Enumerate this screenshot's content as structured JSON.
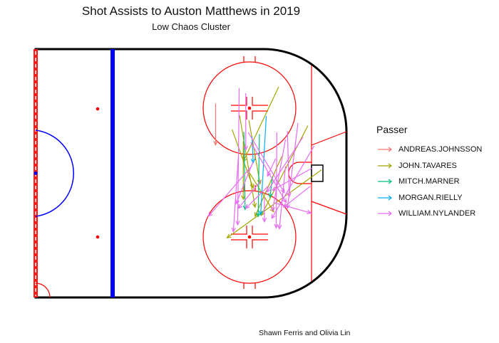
{
  "title": "Shot Assists to Auston Matthews in 2019",
  "subtitle": "Low Chaos Cluster",
  "caption": "Shawn Ferris and Olivia Lin",
  "legend": {
    "title": "Passer",
    "items": [
      {
        "name": "ANDREAS.JOHNSSON",
        "color": "#F8766D"
      },
      {
        "name": "JOHN.TAVARES",
        "color": "#A3A500"
      },
      {
        "name": "MITCH.MARNER",
        "color": "#00BF7D"
      },
      {
        "name": "MORGAN.RIELLY",
        "color": "#00B0F6"
      },
      {
        "name": "WILLIAM.NYLANDER",
        "color": "#E76BF3"
      }
    ]
  },
  "chart_data": {
    "type": "arrows",
    "title": "Shot Assists to Auston Matthews in 2019",
    "subtitle": "Low Chaos Cluster",
    "xlabel": "",
    "ylabel": "",
    "xlim": [
      0,
      100
    ],
    "ylim": [
      -42.5,
      42.5
    ],
    "grid": false,
    "legend_position": "right",
    "series": [
      {
        "name": "ANDREAS.JOHNSSON",
        "color": "#F8766D",
        "arrows": [
          [
            57.9,
            23.9,
            57.9,
            9.7
          ]
        ]
      },
      {
        "name": "JOHN.TAVARES",
        "color": "#A3A500",
        "arrows": [
          [
            78.2,
            29.6,
            66.8,
            4.0
          ],
          [
            66.8,
            10.9,
            66.8,
            -8.9
          ],
          [
            65.6,
            19.9,
            70.6,
            -11.6
          ],
          [
            68.6,
            18.2,
            72.2,
            -3.6
          ],
          [
            79.2,
            5.8,
            70.6,
            -14.7
          ],
          [
            87.6,
            16.3,
            72.6,
            -14.4
          ],
          [
            92.0,
            1.2,
            61.6,
            -22.1
          ],
          [
            68.2,
            1.2,
            76.6,
            -13.2
          ],
          [
            63.2,
            15.0,
            70.0,
            -5.0
          ]
        ]
      },
      {
        "name": "MITCH.MARNER",
        "color": "#00BF7D",
        "arrows": [
          [
            67.0,
            14.2,
            67.4,
            -12.4
          ],
          [
            72.0,
            13.4,
            71.6,
            -14.8
          ],
          [
            76.2,
            -1.2,
            75.4,
            -8.2
          ]
        ]
      },
      {
        "name": "MORGAN.RIELLY",
        "color": "#00B0F6",
        "arrows": [
          [
            74.2,
            19.6,
            72.4,
            -14.2
          ],
          [
            69.6,
            12.6,
            70.0,
            3.6
          ]
        ]
      },
      {
        "name": "WILLIAM.NYLANDER",
        "color": "#E76BF3",
        "arrows": [
          [
            65.5,
            29.2,
            65.0,
            -17.6
          ],
          [
            67.6,
            27.4,
            67.6,
            8.0
          ],
          [
            77.6,
            14.0,
            77.4,
            -18.7
          ],
          [
            81.0,
            14.4,
            81.6,
            -8.0
          ],
          [
            84.4,
            17.2,
            81.0,
            -12.0
          ],
          [
            86.0,
            12.4,
            74.4,
            -6.4
          ],
          [
            89.6,
            9.4,
            76.0,
            -15.4
          ],
          [
            89.0,
            1.8,
            76.2,
            -5.8
          ],
          [
            88.4,
            -4.4,
            79.8,
            -11.6
          ],
          [
            80.4,
            2.4,
            78.4,
            -19.0
          ],
          [
            73.6,
            -8.4,
            73.6,
            -16.6
          ],
          [
            68.4,
            14.0,
            80.0,
            -6.6
          ],
          [
            69.2,
            10.6,
            80.6,
            -10.0
          ],
          [
            77.2,
            -10.2,
            88.6,
            -13.6
          ],
          [
            77.2,
            5.0,
            74.6,
            -1.0
          ],
          [
            70.0,
            4.0,
            64.5,
            -10.4
          ],
          [
            69.6,
            2.6,
            55.6,
            -14.7
          ],
          [
            80.4,
            11.6,
            76.2,
            -12.8
          ],
          [
            65.2,
            5.4,
            63.6,
            -20.0
          ],
          [
            72.4,
            -2.6,
            65.2,
            -12.0
          ],
          [
            74.8,
            -4.4,
            67.6,
            -12.0
          ]
        ]
      }
    ]
  }
}
